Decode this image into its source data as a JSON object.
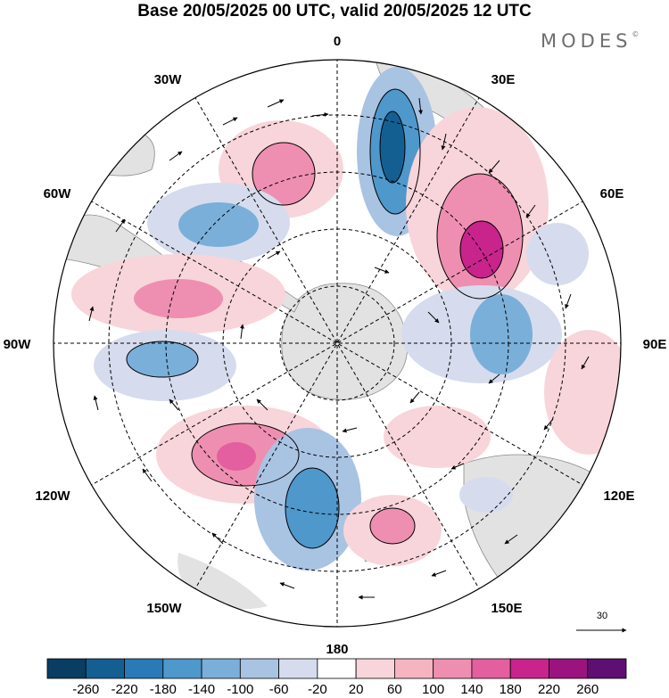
{
  "title": "Base 20/05/2025 00 UTC, valid 20/05/2025 12 UTC",
  "brand": "MODES",
  "brand_mark": "©",
  "longitude_labels": {
    "lon_0": "0",
    "lon_30e": "30E",
    "lon_60e": "60E",
    "lon_90e": "90E",
    "lon_120e": "120E",
    "lon_150e": "150E",
    "lon_180": "180",
    "lon_150w": "150W",
    "lon_120w": "120W",
    "lon_90w": "90W",
    "lon_60w": "60W",
    "lon_30w": "30W"
  },
  "reference_vector": {
    "value": "30"
  },
  "colorbar": {
    "colors": [
      "#0a3d62",
      "#145f92",
      "#2a7ab8",
      "#4e98cc",
      "#7aafd9",
      "#a9c3e3",
      "#d6dcee",
      "#ffffff",
      "#f8d5da",
      "#f4b5c1",
      "#ee8fb1",
      "#e35f9f",
      "#c9238c",
      "#9b137f",
      "#5e0f72"
    ],
    "tick_labels": [
      "-260",
      "-220",
      "-180",
      "-140",
      "-100",
      "-60",
      "-20",
      "20",
      "60",
      "100",
      "140",
      "180",
      "220",
      "260"
    ]
  },
  "colors": {
    "land": "#e2e2e2",
    "grid": "#000000"
  }
}
